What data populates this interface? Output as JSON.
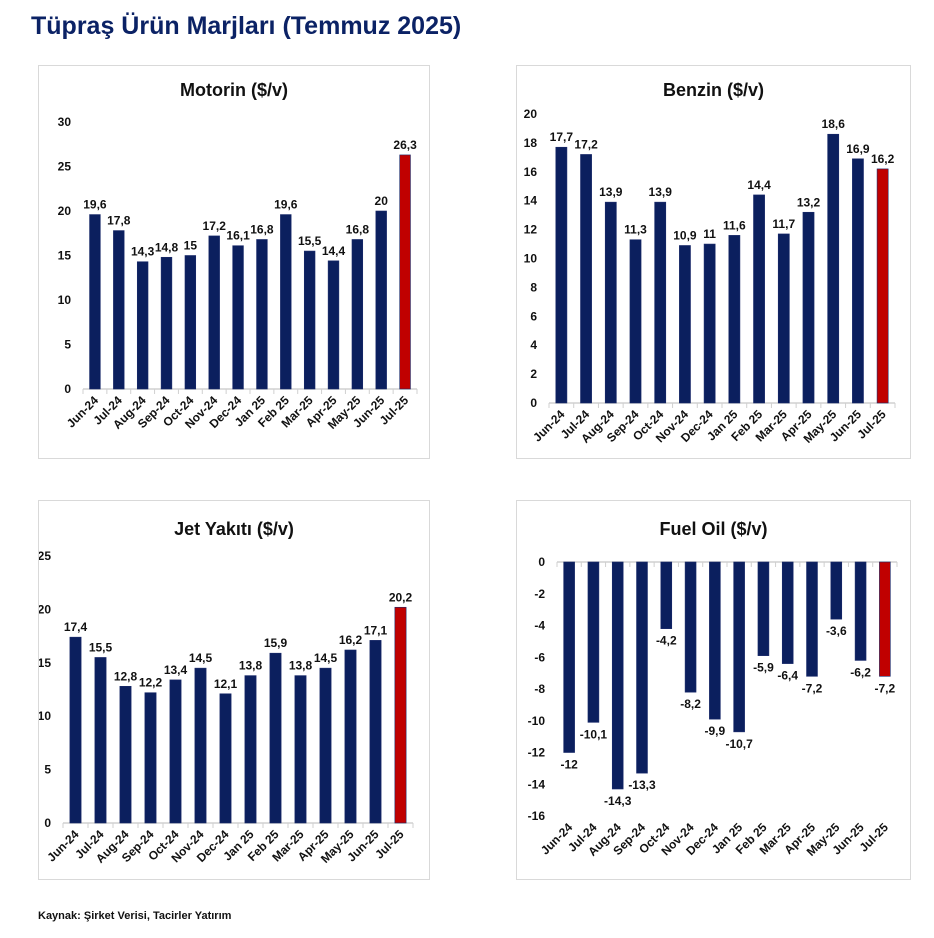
{
  "title": "Tüpraş Ürün Marjları (Temmuz 2025)",
  "source": "Kaynak: Şirket Verisi, Tacirler Yatırım",
  "colors": {
    "bar": "#0b1f5e",
    "highlight": "#c00000"
  },
  "chart_data": [
    {
      "type": "bar",
      "title": "Motorin ($/v)",
      "categories": [
        "Jun-24",
        "Jul-24",
        "Aug-24",
        "Sep-24",
        "Oct-24",
        "Nov-24",
        "Dec-24",
        "Jan 25",
        "Feb 25",
        "Mar-25",
        "Apr-25",
        "May-25",
        "Jun-25",
        "Jul-25"
      ],
      "values": [
        19.6,
        17.8,
        14.3,
        14.8,
        15,
        17.2,
        16.1,
        16.8,
        19.6,
        15.5,
        14.4,
        16.8,
        20,
        26.3
      ],
      "labels": [
        "19,6",
        "17,8",
        "14,3",
        "14,8",
        "15",
        "17,2",
        "16,1",
        "16,8",
        "19,6",
        "15,5",
        "14,4",
        "16,8",
        "20",
        "26,3"
      ],
      "highlight_index": 13,
      "ylim": [
        0,
        30
      ],
      "yticks": [
        0,
        5,
        10,
        15,
        20,
        25,
        30
      ],
      "grid": false,
      "legend": "none"
    },
    {
      "type": "bar",
      "title": "Benzin ($/v)",
      "categories": [
        "Jun-24",
        "Jul-24",
        "Aug-24",
        "Sep-24",
        "Oct-24",
        "Nov-24",
        "Dec-24",
        "Jan 25",
        "Feb 25",
        "Mar-25",
        "Apr-25",
        "May-25",
        "Jun-25",
        "Jul-25"
      ],
      "values": [
        17.7,
        17.2,
        13.9,
        11.3,
        13.9,
        10.9,
        11,
        11.6,
        14.4,
        11.7,
        13.2,
        18.6,
        16.9,
        16.2
      ],
      "labels": [
        "17,7",
        "17,2",
        "13,9",
        "11,3",
        "13,9",
        "10,9",
        "11",
        "11,6",
        "14,4",
        "11,7",
        "13,2",
        "18,6",
        "16,9",
        "16,2"
      ],
      "highlight_index": 13,
      "ylim": [
        0,
        20
      ],
      "yticks": [
        0,
        2,
        4,
        6,
        8,
        10,
        12,
        14,
        16,
        18,
        20
      ],
      "grid": false,
      "legend": "none"
    },
    {
      "type": "bar",
      "title": "Jet Yakıtı ($/v)",
      "categories": [
        "Jun-24",
        "Jul-24",
        "Aug-24",
        "Sep-24",
        "Oct-24",
        "Nov-24",
        "Dec-24",
        "Jan 25",
        "Feb 25",
        "Mar-25",
        "Apr-25",
        "May-25",
        "Jun-25",
        "Jul-25"
      ],
      "values": [
        17.4,
        15.5,
        12.8,
        12.2,
        13.4,
        14.5,
        12.1,
        13.8,
        15.9,
        13.8,
        14.5,
        16.2,
        17.1,
        20.2
      ],
      "labels": [
        "17,4",
        "15,5",
        "12,8",
        "12,2",
        "13,4",
        "14,5",
        "12,1",
        "13,8",
        "15,9",
        "13,8",
        "14,5",
        "16,2",
        "17,1",
        "20,2"
      ],
      "highlight_index": 13,
      "ylim": [
        0,
        25
      ],
      "yticks": [
        0,
        5,
        10,
        15,
        20,
        25
      ],
      "grid": false,
      "legend": "none"
    },
    {
      "type": "bar",
      "title": "Fuel Oil ($/v)",
      "categories": [
        "Jun-24",
        "Jul-24",
        "Aug-24",
        "Sep-24",
        "Oct-24",
        "Nov-24",
        "Dec-24",
        "Jan 25",
        "Feb 25",
        "Mar-25",
        "Apr-25",
        "May-25",
        "Jun-25",
        "Jul-25"
      ],
      "values": [
        -12,
        -10.1,
        -14.3,
        -13.3,
        -4.2,
        -8.2,
        -9.9,
        -10.7,
        -5.9,
        -6.4,
        -7.2,
        -3.6,
        -6.2,
        -7.2
      ],
      "labels": [
        "-12",
        "-10,1",
        "-14,3",
        "-13,3",
        "-4,2",
        "-8,2",
        "-9,9",
        "-10,7",
        "-5,9",
        "-6,4",
        "-7,2",
        "-3,6",
        "-6,2",
        "-7,2"
      ],
      "highlight_index": 13,
      "ylim": [
        -16,
        0
      ],
      "yticks": [
        0,
        -2,
        -4,
        -6,
        -8,
        -10,
        -12,
        -14,
        -16
      ],
      "ytick_labels": [
        "0",
        "-2",
        "-4",
        "-6",
        "-8",
        "-10",
        "-12",
        "-14",
        "-16"
      ],
      "grid": false,
      "legend": "none"
    }
  ]
}
